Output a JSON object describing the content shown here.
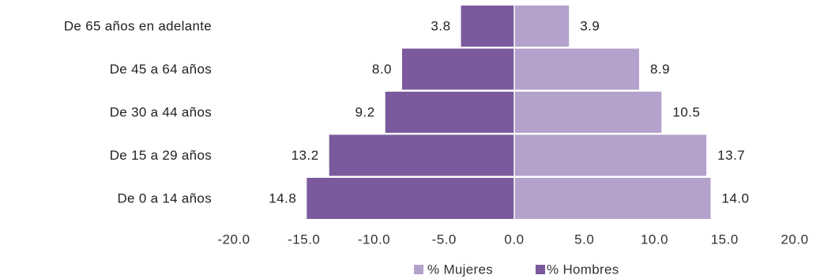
{
  "chart_data": {
    "type": "bar",
    "orientation": "horizontal",
    "layout": "population-pyramid",
    "categories": [
      "De 65 años en adelante",
      "De 45 a 64 años",
      "De 30 a 44 años",
      "De 15 a 29 años",
      "De 0 a 14 años"
    ],
    "series": [
      {
        "name": "% Hombres",
        "values": [
          -3.8,
          -8.0,
          -9.2,
          -13.2,
          -14.8
        ],
        "labels": [
          "3.8",
          "8.0",
          "9.2",
          "13.2",
          "14.8"
        ],
        "color": "#7a5a9c"
      },
      {
        "name": "% Mujeres",
        "values": [
          3.9,
          8.9,
          10.5,
          13.7,
          14.0
        ],
        "labels": [
          "3.9",
          "8.9",
          "10.5",
          "13.7",
          "14.0"
        ],
        "color": "#b4a1cc"
      }
    ],
    "xlim": [
      -20,
      20
    ],
    "x_ticks": [
      -20,
      -15,
      -10,
      -5,
      0,
      5,
      10,
      15,
      20
    ],
    "x_tick_labels": [
      "-20.0",
      "-15.0",
      "-10.0",
      "-5.0",
      "0.0",
      "5.0",
      "10.0",
      "15.0",
      "20.0"
    ],
    "legend": {
      "position": "bottom",
      "items": [
        {
          "label": "% Mujeres",
          "color": "#b4a1cc"
        },
        {
          "label": "% Hombres",
          "color": "#7a5a9c"
        }
      ]
    },
    "grid": false,
    "title": "",
    "xlabel": "",
    "ylabel": ""
  }
}
